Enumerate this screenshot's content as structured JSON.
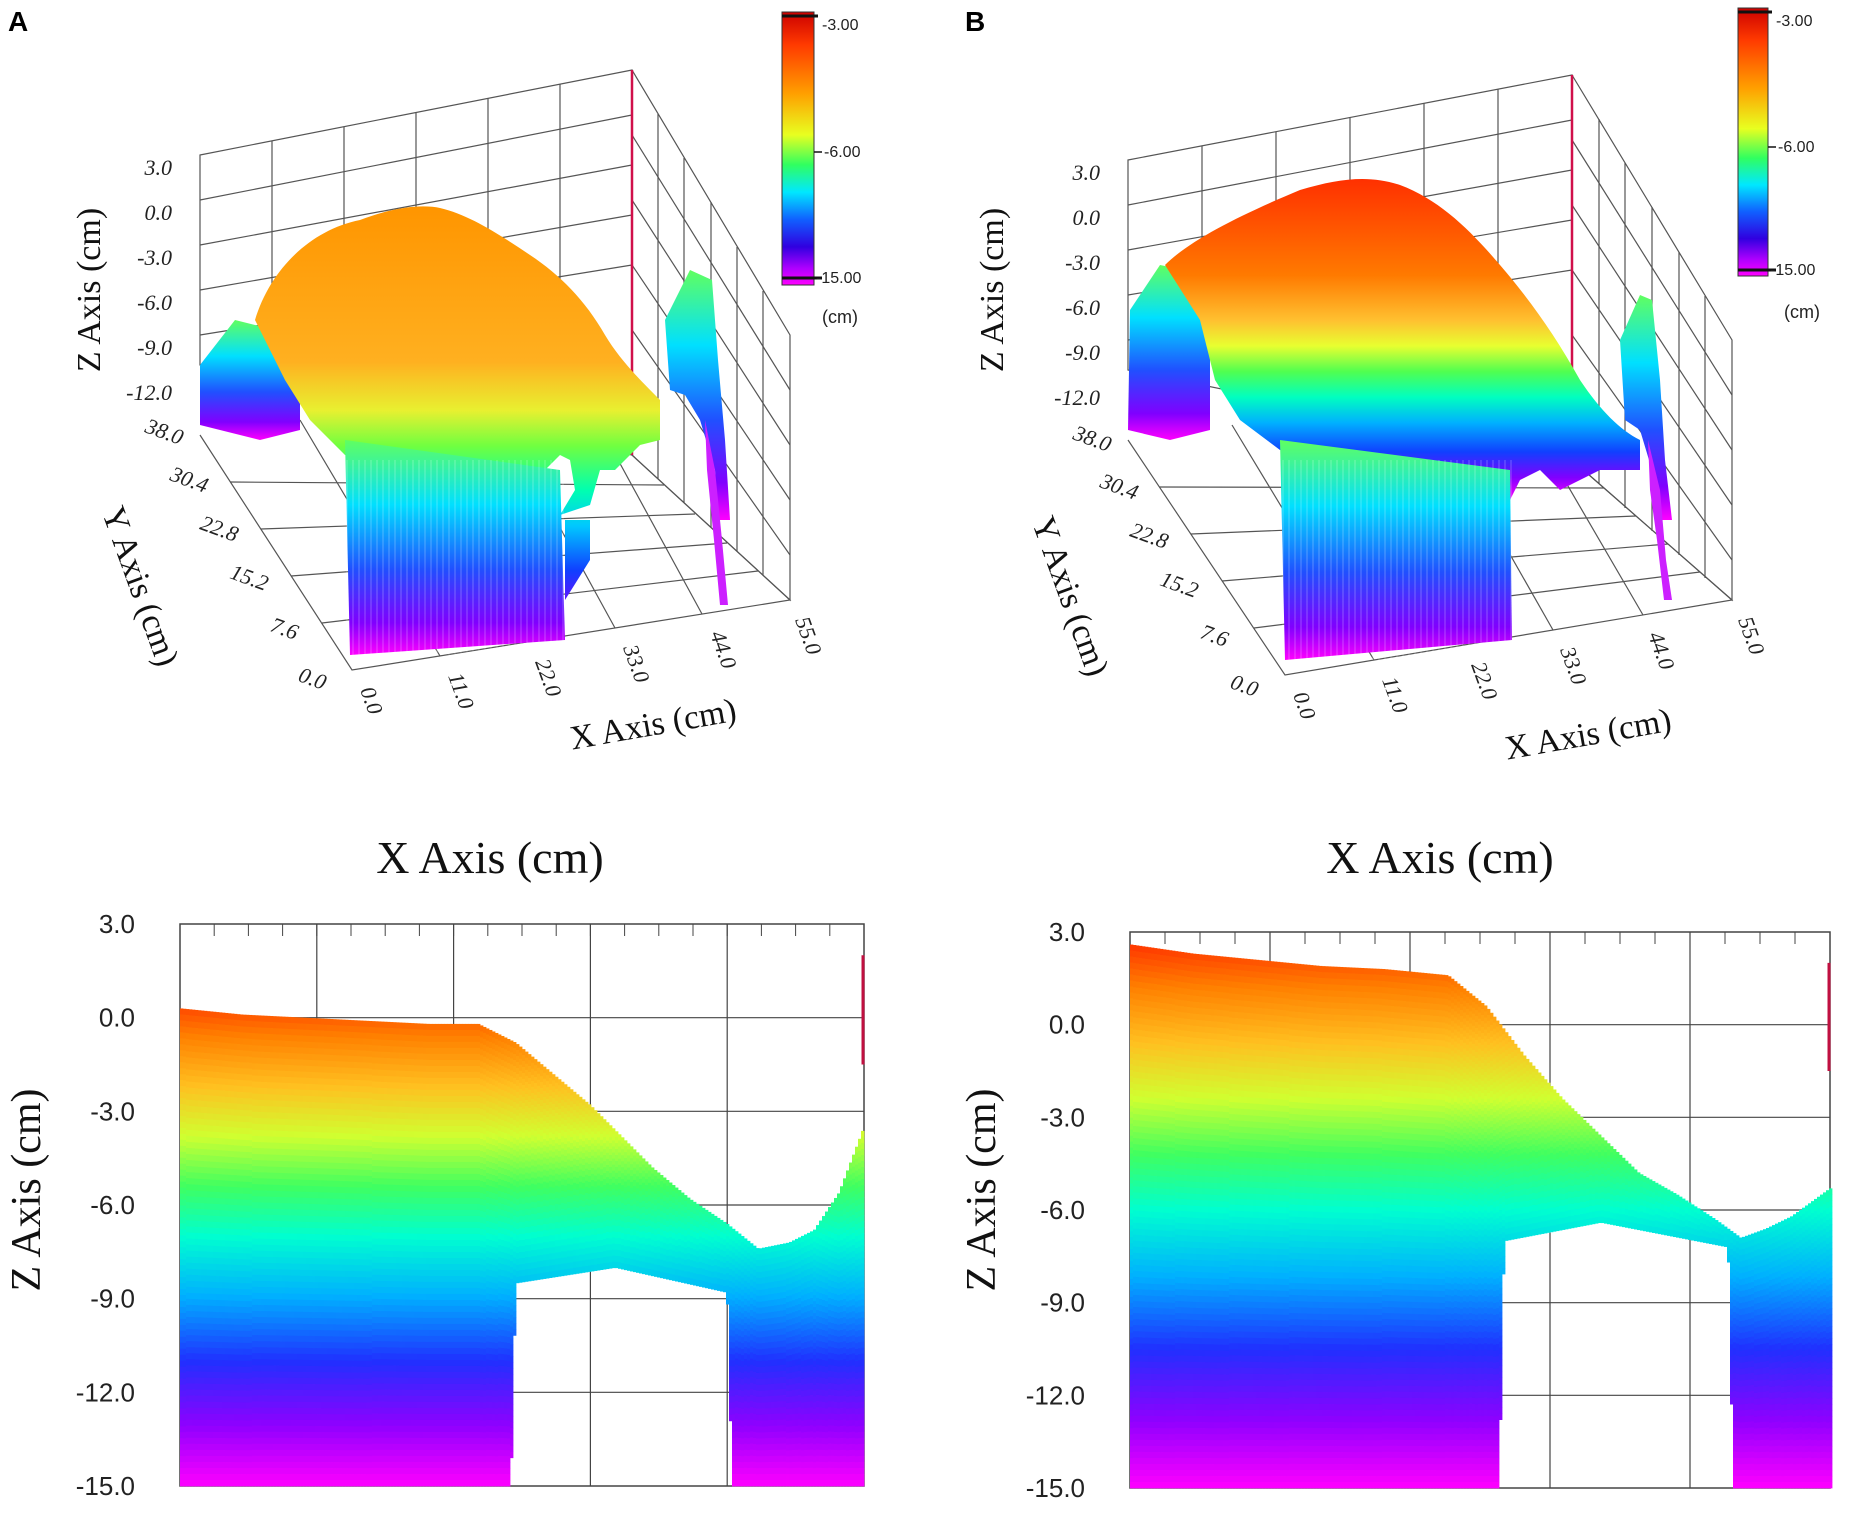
{
  "panels": [
    {
      "letter": "A",
      "colorbar": {
        "max_label": "-3.00",
        "mid_label": "-6.00",
        "min_label": "-15.00",
        "unit": "(cm)"
      },
      "surface": {
        "z_axis_label": "Z Axis (cm)",
        "y_axis_label": "Y Axis (cm)",
        "x_axis_label": "X Axis (cm)",
        "z_ticks": [
          "3.0",
          "0.0",
          "-3.0",
          "-6.0",
          "-9.0",
          "-12.0"
        ],
        "y_ticks": [
          "38.0",
          "30.4",
          "22.8",
          "15.2",
          "7.6",
          "0.0"
        ],
        "x_ticks": [
          "0.0",
          "11.0",
          "22.0",
          "33.0",
          "44.0",
          "55.0"
        ]
      },
      "profile": {
        "title": "X Axis (cm)",
        "y_axis_label": "Z Axis (cm)",
        "y_ticks": [
          "3.0",
          "0.0",
          "-3.0",
          "-6.0",
          "-9.0",
          "-12.0",
          "-15.0"
        ]
      }
    },
    {
      "letter": "B",
      "colorbar": {
        "max_label": "-3.00",
        "mid_label": "-6.00",
        "min_label": "-15.00",
        "unit": "(cm)"
      },
      "surface": {
        "z_axis_label": "Z Axis (cm)",
        "y_axis_label": "Y Axis (cm)",
        "x_axis_label": "X Axis (cm)",
        "z_ticks": [
          "3.0",
          "0.0",
          "-3.0",
          "-6.0",
          "-9.0",
          "-12.0"
        ],
        "y_ticks": [
          "38.0",
          "30.4",
          "22.8",
          "15.2",
          "7.6",
          "0.0"
        ],
        "x_ticks": [
          "0.0",
          "11.0",
          "22.0",
          "33.0",
          "44.0",
          "55.0"
        ]
      },
      "profile": {
        "title": "X Axis (cm)",
        "y_axis_label": "Z Axis (cm)",
        "y_ticks": [
          "3.0",
          "0.0",
          "-3.0",
          "-6.0",
          "-9.0",
          "-12.0",
          "-15.0"
        ]
      }
    }
  ],
  "chart_data": [
    {
      "panel": "A",
      "type": "area",
      "title": "X Axis (cm)",
      "xlabel": "X Axis (cm)",
      "ylabel": "Z Axis (cm)",
      "xlim": [
        0,
        55
      ],
      "ylim": [
        -15,
        3
      ],
      "series": [
        {
          "name": "profile top (Z max)",
          "x": [
            0,
            5,
            10,
            15,
            20,
            24,
            27,
            30,
            33,
            36,
            38,
            41,
            44,
            46.5,
            49,
            51,
            53,
            55
          ],
          "values": [
            0.3,
            0.1,
            0.0,
            -0.1,
            -0.2,
            -0.2,
            -0.8,
            -1.8,
            -2.8,
            -4.0,
            -4.8,
            -5.8,
            -6.6,
            -7.4,
            -7.2,
            -6.8,
            -5.6,
            -3.5
          ]
        },
        {
          "name": "profile bottom (Z min)",
          "x": [
            0,
            26.6,
            27.0,
            35.0,
            44.0,
            44.4,
            55
          ],
          "values": [
            -15,
            -15,
            -8.5,
            -8.0,
            -8.8,
            -15,
            -15
          ]
        }
      ],
      "colorscale": {
        "min": -15,
        "max": -3
      }
    },
    {
      "panel": "B",
      "type": "area",
      "title": "X Axis (cm)",
      "xlabel": "X Axis (cm)",
      "ylabel": "Z Axis (cm)",
      "xlim": [
        0,
        55
      ],
      "ylim": [
        -15,
        3
      ],
      "series": [
        {
          "name": "profile top (Z max)",
          "x": [
            0,
            5,
            10,
            15,
            20,
            25,
            28,
            31,
            34,
            37,
            40,
            43,
            46,
            48,
            50,
            52,
            55
          ],
          "values": [
            2.6,
            2.3,
            2.1,
            1.9,
            1.8,
            1.6,
            0.6,
            -1.0,
            -2.4,
            -3.6,
            -4.8,
            -5.5,
            -6.3,
            -6.9,
            -6.6,
            -6.2,
            -5.3
          ]
        },
        {
          "name": "profile bottom (Z min)",
          "x": [
            0,
            29.0,
            29.4,
            37.0,
            47.0,
            47.4,
            55
          ],
          "values": [
            -15,
            -15,
            -7.0,
            -6.4,
            -7.2,
            -15,
            -15
          ]
        }
      ],
      "colorscale": {
        "min": -15,
        "max": -3
      }
    }
  ]
}
